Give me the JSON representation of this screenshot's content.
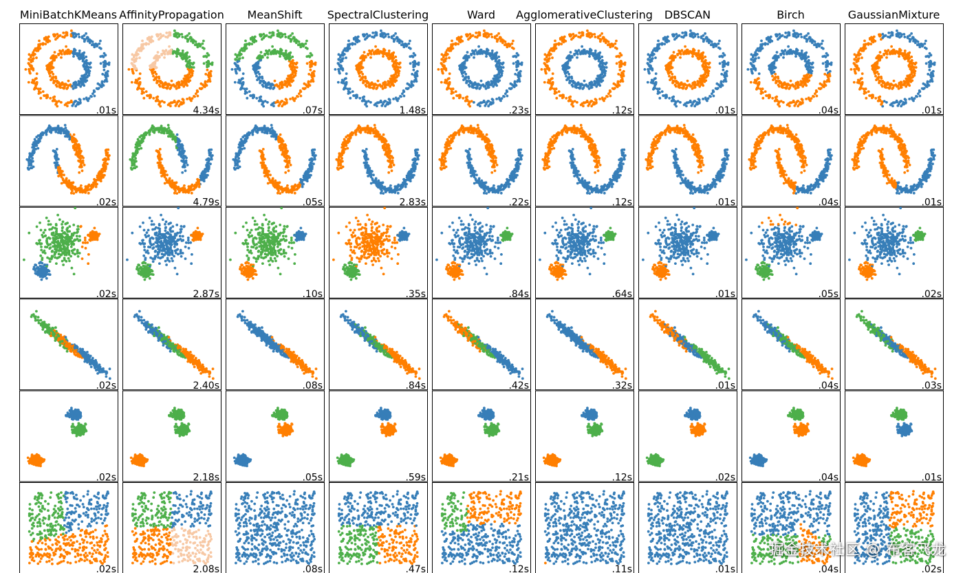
{
  "chart_data": {
    "type": "scatter",
    "layout": "grid",
    "rows": 6,
    "cols": 9,
    "algorithms": [
      "MiniBatchKMeans",
      "AffinityPropagation",
      "MeanShift",
      "SpectralClustering",
      "Ward",
      "AgglomerativeClustering",
      "DBSCAN",
      "Birch",
      "GaussianMixture"
    ],
    "datasets": [
      "noisy_circles",
      "noisy_moons",
      "varied",
      "aniso",
      "blobs",
      "no_structure"
    ],
    "timings": [
      [
        ".01s",
        "4.34s",
        ".07s",
        "1.48s",
        ".23s",
        ".12s",
        ".01s",
        ".04s",
        ".01s"
      ],
      [
        ".02s",
        "4.79s",
        ".05s",
        "2.83s",
        ".22s",
        ".12s",
        ".01s",
        ".04s",
        ".01s"
      ],
      [
        ".02s",
        "2.87s",
        ".10s",
        ".35s",
        ".84s",
        ".64s",
        ".01s",
        ".05s",
        ".02s"
      ],
      [
        ".02s",
        "2.40s",
        ".08s",
        ".84s",
        ".42s",
        ".32s",
        ".01s",
        ".04s",
        ".03s"
      ],
      [
        ".02s",
        "2.18s",
        ".05s",
        ".59s",
        ".21s",
        ".12s",
        ".02s",
        ".04s",
        ".01s"
      ],
      [
        ".02s",
        "2.08s",
        ".08s",
        ".47s",
        ".12s",
        ".11s",
        ".01s",
        ".04s",
        ".02s"
      ]
    ],
    "cluster_colors": [
      "#377eb8",
      "#ff7f00",
      "#4daf4a",
      "#f7c8a4"
    ],
    "panel_style": {
      "xticks": "none",
      "yticks": "none",
      "grid": "off",
      "timing_position": "bottom-right"
    }
  },
  "watermark": "掘金技术社区 @ 布客飞龙"
}
